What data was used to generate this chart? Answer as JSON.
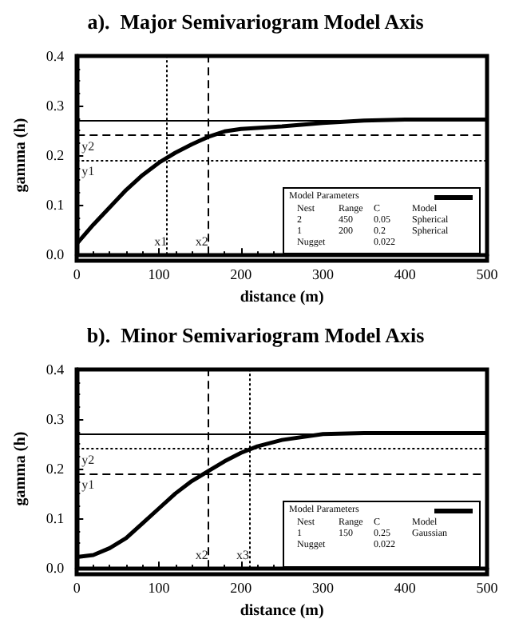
{
  "chart_data": [
    {
      "type": "line",
      "title": "a).  Major Semivariogram Model Axis",
      "xlabel": "distance (m)",
      "ylabel": "gamma (h)",
      "x": [
        0,
        20,
        40,
        60,
        80,
        100,
        120,
        140,
        160,
        180,
        200,
        250,
        300,
        350,
        400,
        500
      ],
      "series": [
        {
          "color": "#000000",
          "values": [
            0.022,
            0.06,
            0.095,
            0.13,
            0.16,
            0.185,
            0.205,
            0.222,
            0.237,
            0.248,
            0.253,
            0.258,
            0.265,
            0.27,
            0.272,
            0.272
          ]
        }
      ],
      "xlim": [
        0,
        500
      ],
      "xticks": [
        0,
        100,
        200,
        300,
        400,
        500
      ],
      "ylim": [
        0,
        0.4
      ],
      "yticks": [
        {
          "value": 0,
          "label": "0.0"
        },
        {
          "value": 0.1,
          "label": "0.1"
        },
        {
          "value": 0.2,
          "label": "0.2"
        },
        {
          "value": 0.3,
          "label": "0.3"
        },
        {
          "value": 0.4,
          "label": "0.4"
        }
      ],
      "ref_lines": [
        {
          "axis": "y",
          "value": 0.272,
          "label": null,
          "line_style": "solid"
        },
        {
          "axis": "y",
          "value": 0.24,
          "label": "y2",
          "line_style": "dashed"
        },
        {
          "axis": "y",
          "value": 0.19,
          "label": "y1",
          "line_style": "dotted"
        },
        {
          "axis": "x",
          "value": 110,
          "label": "x1",
          "line_style": "dotted"
        },
        {
          "axis": "x",
          "value": 160,
          "label": "x2",
          "line_style": "dashed"
        }
      ],
      "annotations": [
        "Model Parameters",
        "Nest",
        "Range",
        "C",
        "Model",
        "2",
        "450",
        "0.05",
        "Spherical",
        "1",
        "200",
        "0.2",
        "Spherical",
        "Nugget",
        "0.022"
      ],
      "grid": false,
      "marker": "none",
      "line_style": "solid"
    },
    {
      "type": "line",
      "title": "b).  Minor Semivariogram Model Axis",
      "xlabel": "distance (m)",
      "ylabel": "gamma (h)",
      "x": [
        0,
        20,
        40,
        60,
        80,
        100,
        120,
        140,
        160,
        180,
        200,
        220,
        250,
        300,
        350,
        500
      ],
      "series": [
        {
          "color": "#000000",
          "values": [
            0.022,
            0.026,
            0.04,
            0.06,
            0.09,
            0.12,
            0.15,
            0.175,
            0.195,
            0.215,
            0.232,
            0.245,
            0.258,
            0.27,
            0.272,
            0.272
          ]
        }
      ],
      "xlim": [
        0,
        500
      ],
      "xticks": [
        0,
        100,
        200,
        300,
        400,
        500
      ],
      "ylim": [
        0,
        0.4
      ],
      "yticks": [
        {
          "value": 0,
          "label": "0.0"
        },
        {
          "value": 0.1,
          "label": "0.1"
        },
        {
          "value": 0.2,
          "label": "0.2"
        },
        {
          "value": 0.3,
          "label": "0.3"
        },
        {
          "value": 0.4,
          "label": "0.4"
        }
      ],
      "ref_lines": [
        {
          "axis": "y",
          "value": 0.272,
          "label": null,
          "line_style": "solid"
        },
        {
          "axis": "y",
          "value": 0.24,
          "label": "y2",
          "line_style": "dotted"
        },
        {
          "axis": "y",
          "value": 0.19,
          "label": "y1",
          "line_style": "dashed"
        },
        {
          "axis": "x",
          "value": 160,
          "label": "x2",
          "line_style": "dashed"
        },
        {
          "axis": "x",
          "value": 210,
          "label": "x3",
          "line_style": "dotted"
        }
      ],
      "annotations": [
        "Model Parameters",
        "Nest",
        "Range",
        "C",
        "Model",
        "1",
        "150",
        "0.25",
        "Gaussian",
        "Nugget",
        "0.022"
      ],
      "grid": false,
      "marker": "none",
      "line_style": "solid"
    }
  ]
}
